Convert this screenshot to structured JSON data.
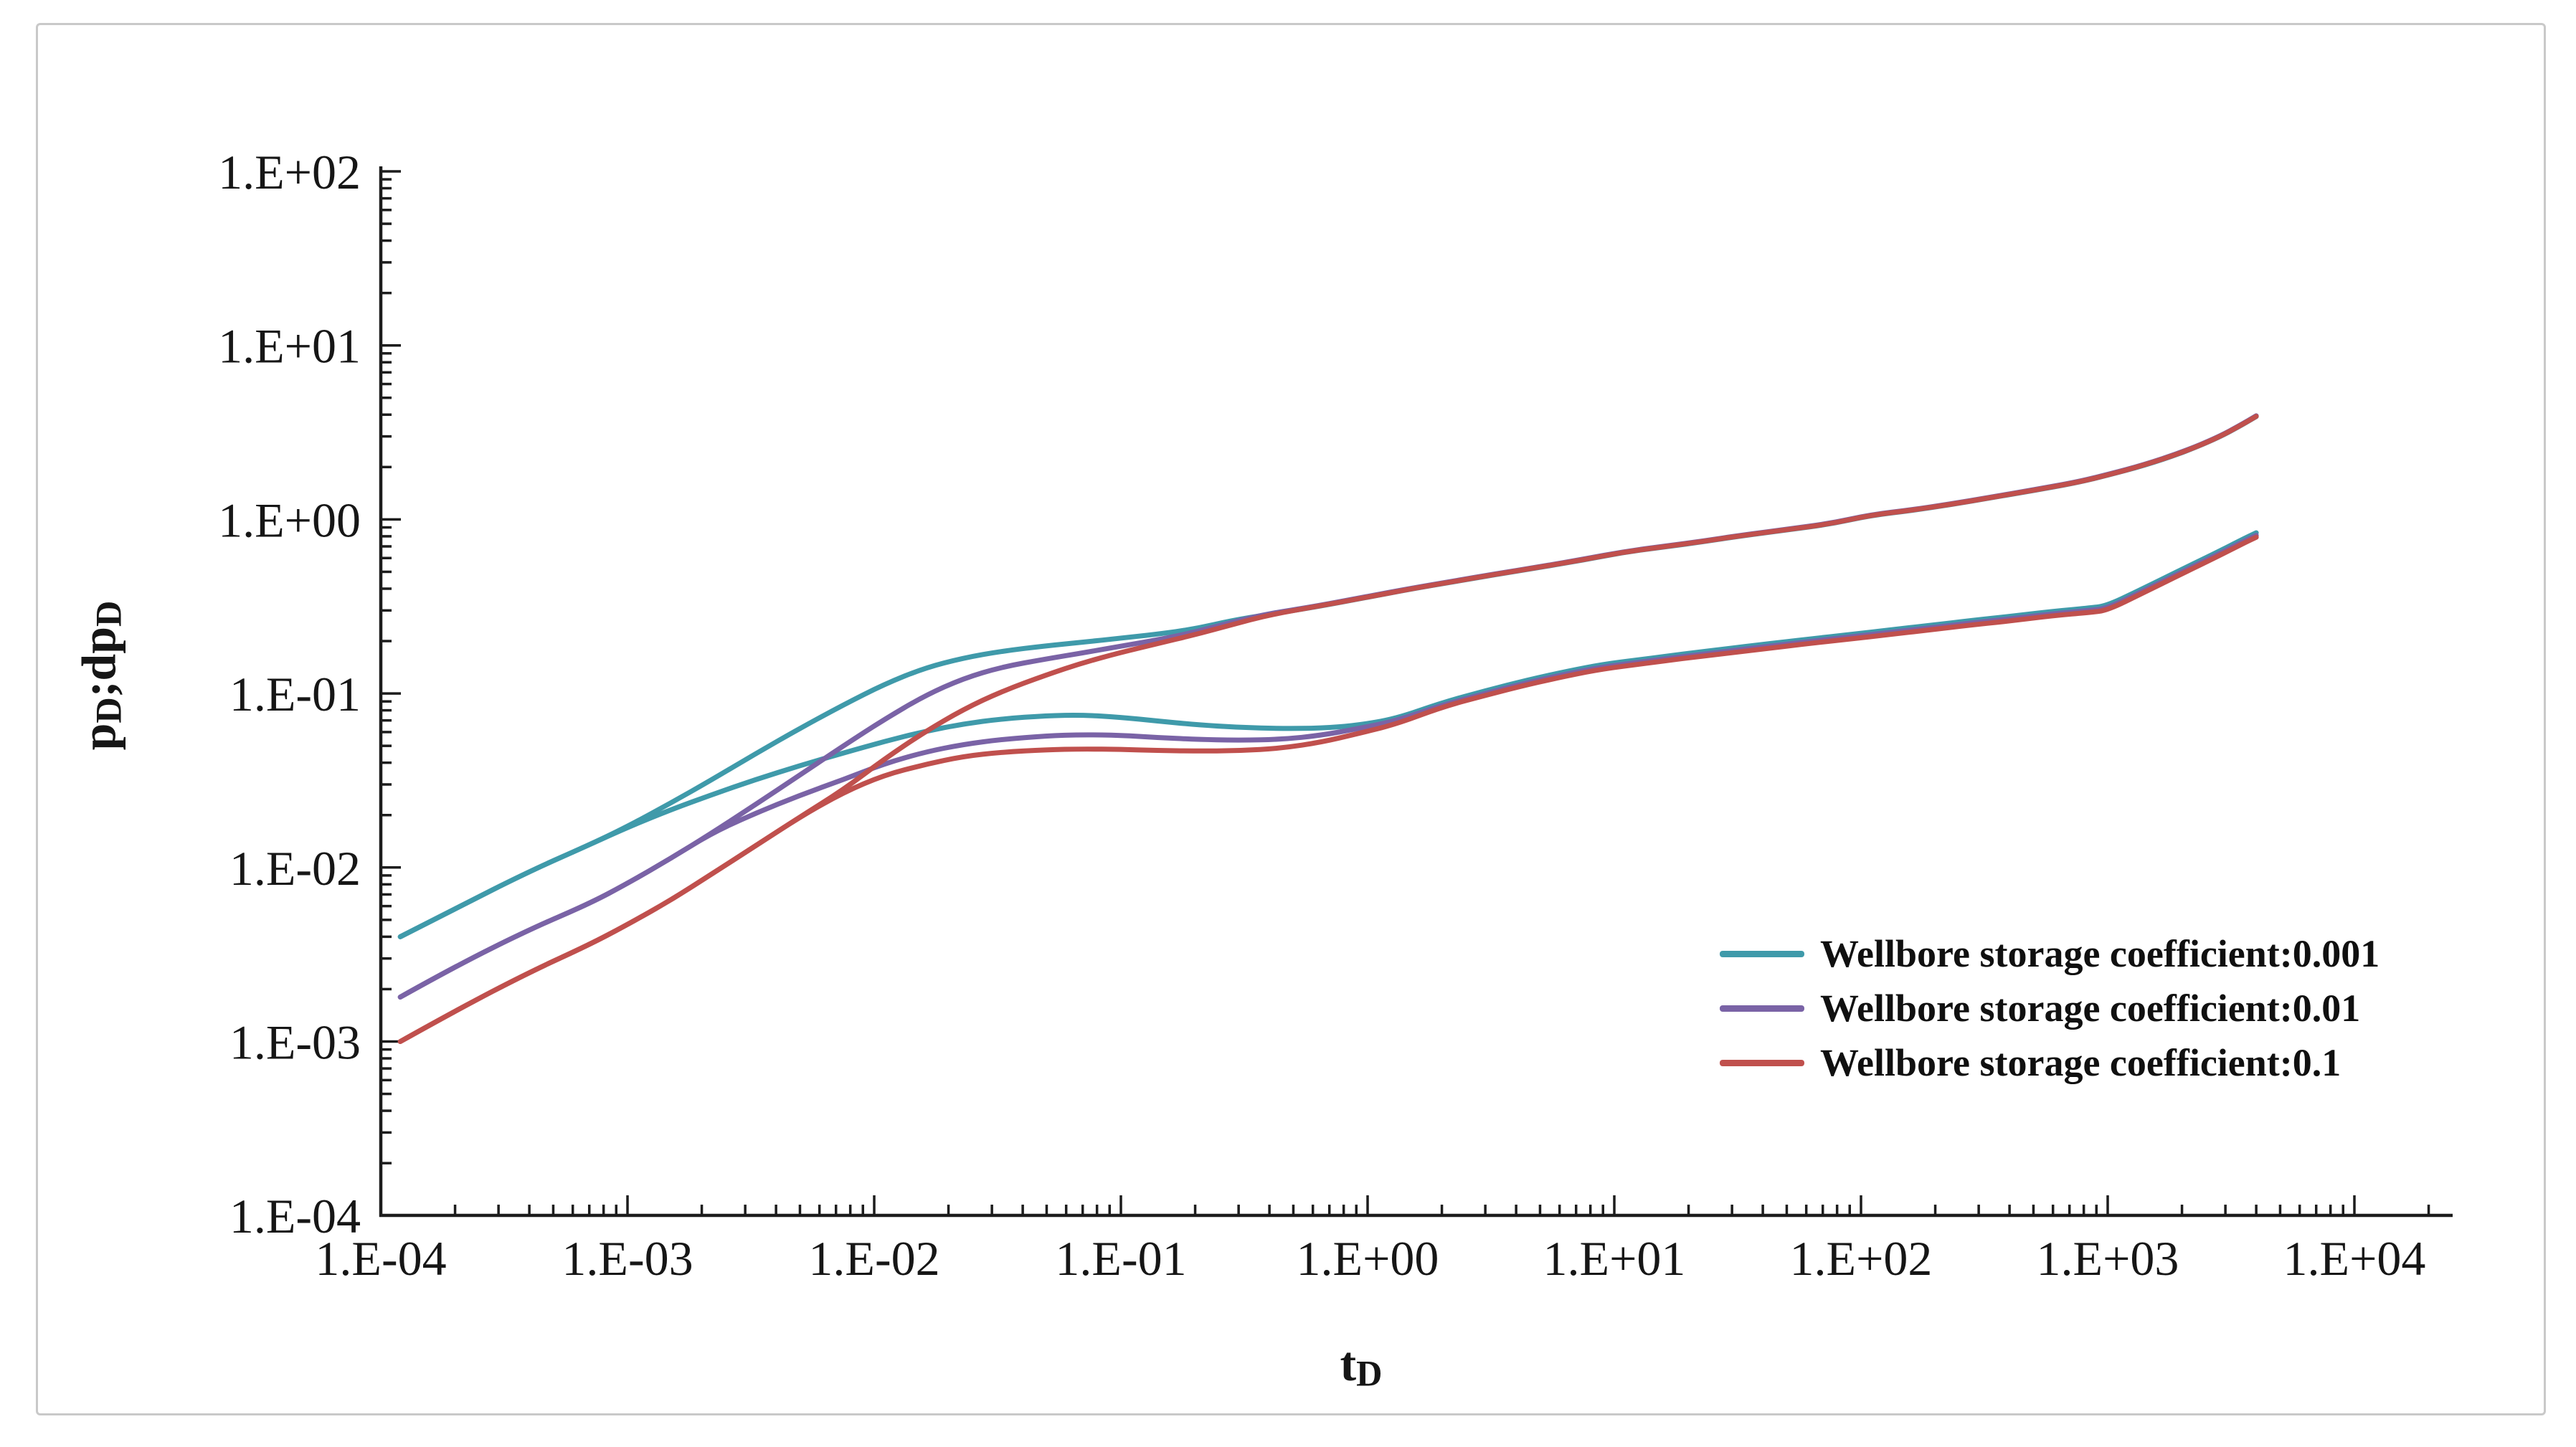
{
  "figure": {
    "background": "#ffffff",
    "border_color": "#c9c9c9",
    "axis_color": "#1c1c1c",
    "text_color": "#161616"
  },
  "chart_data": {
    "type": "line",
    "title": "",
    "x_axis": {
      "scale": "log",
      "label": "tD",
      "label_main": "t",
      "label_sub": "D",
      "min": 0.0001,
      "max": 10000,
      "tick_labels": [
        "1.E-04",
        "1.E-03",
        "1.E-02",
        "1.E-01",
        "1.E+00",
        "1.E+01",
        "1.E+02",
        "1.E+03",
        "1.E+04"
      ]
    },
    "y_axis": {
      "scale": "log",
      "label": "pD;dpD",
      "label_parts": [
        {
          "text": "p",
          "sub": false
        },
        {
          "text": "D",
          "sub": true
        },
        {
          "text": ";dp",
          "sub": false
        },
        {
          "text": "D",
          "sub": true
        }
      ],
      "min": 0.0001,
      "max": 100,
      "tick_labels": [
        "1.E+02",
        "1.E+01",
        "1.E+00",
        "1.E-01",
        "1.E-02",
        "1.E-03",
        "1.E-04"
      ]
    },
    "legend": {
      "position": "inside-right",
      "entries": [
        {
          "label": "Wellbore storage coefficient:0.001",
          "color": "#3f9aaa"
        },
        {
          "label": "Wellbore storage coefficient:0.01",
          "color": "#7a63a6"
        },
        {
          "label": "Wellbore storage coefficient:0.1",
          "color": "#c0504d"
        }
      ]
    },
    "series": [
      {
        "name": "wellbore-storage-0.001-pressure",
        "coefficient": 0.001,
        "role": "pressure",
        "color": "#3f9aaa",
        "points": [
          [
            0.00012,
            0.004
          ],
          [
            0.0002,
            0.0058
          ],
          [
            0.0004,
            0.0095
          ],
          [
            0.0007,
            0.0135
          ],
          [
            0.001,
            0.0172
          ],
          [
            0.0015,
            0.0235
          ],
          [
            0.0022,
            0.032
          ],
          [
            0.0033,
            0.045
          ],
          [
            0.005,
            0.063
          ],
          [
            0.0075,
            0.086
          ],
          [
            0.011,
            0.113
          ],
          [
            0.016,
            0.14
          ],
          [
            0.023,
            0.16
          ],
          [
            0.033,
            0.175
          ],
          [
            0.05,
            0.188
          ],
          [
            0.07,
            0.197
          ],
          [
            0.1,
            0.208
          ],
          [
            0.14,
            0.219
          ],
          [
            0.2,
            0.235
          ],
          [
            0.28,
            0.262
          ],
          [
            0.4,
            0.285
          ],
          [
            0.6,
            0.312
          ],
          [
            1,
            0.357
          ],
          [
            1.5,
            0.398
          ],
          [
            2.2,
            0.437
          ],
          [
            3.3,
            0.482
          ],
          [
            5,
            0.53
          ],
          [
            7.5,
            0.585
          ],
          [
            11,
            0.648
          ],
          [
            16,
            0.695
          ],
          [
            23,
            0.745
          ],
          [
            33,
            0.805
          ],
          [
            50,
            0.87
          ],
          [
            75,
            0.94
          ],
          [
            110,
            1.055
          ],
          [
            160,
            1.125
          ],
          [
            230,
            1.215
          ],
          [
            330,
            1.325
          ],
          [
            500,
            1.465
          ],
          [
            750,
            1.625
          ],
          [
            1000,
            1.795
          ],
          [
            1400,
            2.04
          ],
          [
            2000,
            2.41
          ],
          [
            2800,
            2.94
          ],
          [
            3500,
            3.49
          ],
          [
            4000,
            3.9
          ]
        ]
      },
      {
        "name": "wellbore-storage-0.001-derivative",
        "coefficient": 0.001,
        "role": "derivative",
        "color": "#3f9aaa",
        "points": [
          [
            0.00012,
            0.004
          ],
          [
            0.0002,
            0.0058
          ],
          [
            0.0004,
            0.0095
          ],
          [
            0.0007,
            0.0135
          ],
          [
            0.001,
            0.017
          ],
          [
            0.0015,
            0.0215
          ],
          [
            0.0022,
            0.0262
          ],
          [
            0.0033,
            0.032
          ],
          [
            0.005,
            0.0385
          ],
          [
            0.0075,
            0.0455
          ],
          [
            0.011,
            0.053
          ],
          [
            0.016,
            0.0605
          ],
          [
            0.023,
            0.0668
          ],
          [
            0.033,
            0.0715
          ],
          [
            0.05,
            0.0745
          ],
          [
            0.07,
            0.0752
          ],
          [
            0.1,
            0.073
          ],
          [
            0.14,
            0.0695
          ],
          [
            0.2,
            0.0662
          ],
          [
            0.3,
            0.0638
          ],
          [
            0.45,
            0.0628
          ],
          [
            0.65,
            0.0632
          ],
          [
            0.9,
            0.0655
          ],
          [
            1.3,
            0.0715
          ],
          [
            2,
            0.0885
          ],
          [
            3,
            0.1035
          ],
          [
            4.5,
            0.12
          ],
          [
            6.5,
            0.1345
          ],
          [
            9,
            0.147
          ],
          [
            13,
            0.157
          ],
          [
            19,
            0.1685
          ],
          [
            28,
            0.18
          ],
          [
            40,
            0.1915
          ],
          [
            60,
            0.2045
          ],
          [
            90,
            0.218
          ],
          [
            130,
            0.2315
          ],
          [
            190,
            0.246
          ],
          [
            280,
            0.2625
          ],
          [
            400,
            0.277
          ],
          [
            600,
            0.2965
          ],
          [
            850,
            0.31
          ],
          [
            1000,
            0.32
          ],
          [
            1400,
            0.403
          ],
          [
            2000,
            0.517
          ],
          [
            2800,
            0.651
          ],
          [
            3500,
            0.765
          ],
          [
            4000,
            0.838
          ]
        ]
      },
      {
        "name": "wellbore-storage-0.01-pressure",
        "coefficient": 0.01,
        "role": "pressure",
        "color": "#7a63a6",
        "points": [
          [
            0.00012,
            0.0018
          ],
          [
            0.0002,
            0.0027
          ],
          [
            0.0004,
            0.0044
          ],
          [
            0.0007,
            0.0062
          ],
          [
            0.001,
            0.0081
          ],
          [
            0.0015,
            0.0113
          ],
          [
            0.0022,
            0.0158
          ],
          [
            0.0033,
            0.023
          ],
          [
            0.005,
            0.034
          ],
          [
            0.0075,
            0.05
          ],
          [
            0.011,
            0.071
          ],
          [
            0.016,
            0.097
          ],
          [
            0.023,
            0.122
          ],
          [
            0.033,
            0.142
          ],
          [
            0.05,
            0.158
          ],
          [
            0.07,
            0.171
          ],
          [
            0.1,
            0.187
          ],
          [
            0.14,
            0.203
          ],
          [
            0.2,
            0.225
          ],
          [
            0.28,
            0.256
          ],
          [
            0.4,
            0.288
          ],
          [
            0.6,
            0.315
          ],
          [
            1,
            0.361
          ],
          [
            1.5,
            0.402
          ],
          [
            2.2,
            0.441
          ],
          [
            3.3,
            0.487
          ],
          [
            5,
            0.535
          ],
          [
            7.5,
            0.591
          ],
          [
            11,
            0.654
          ],
          [
            16,
            0.702
          ],
          [
            23,
            0.752
          ],
          [
            33,
            0.813
          ],
          [
            50,
            0.878
          ],
          [
            75,
            0.949
          ],
          [
            110,
            1.065
          ],
          [
            160,
            1.136
          ],
          [
            230,
            1.227
          ],
          [
            330,
            1.338
          ],
          [
            500,
            1.48
          ],
          [
            750,
            1.641
          ],
          [
            1000,
            1.813
          ],
          [
            1400,
            2.06
          ],
          [
            2000,
            2.434
          ],
          [
            2800,
            2.969
          ],
          [
            3500,
            3.525
          ],
          [
            4000,
            3.939
          ]
        ]
      },
      {
        "name": "wellbore-storage-0.01-derivative",
        "coefficient": 0.01,
        "role": "derivative",
        "color": "#7a63a6",
        "points": [
          [
            0.00012,
            0.0018
          ],
          [
            0.0002,
            0.0027
          ],
          [
            0.0004,
            0.0044
          ],
          [
            0.0007,
            0.0062
          ],
          [
            0.001,
            0.0081
          ],
          [
            0.0015,
            0.0113
          ],
          [
            0.0022,
            0.0158
          ],
          [
            0.0033,
            0.0205
          ],
          [
            0.005,
            0.026
          ],
          [
            0.0075,
            0.032
          ],
          [
            0.011,
            0.0395
          ],
          [
            0.016,
            0.046
          ],
          [
            0.023,
            0.051
          ],
          [
            0.033,
            0.0545
          ],
          [
            0.05,
            0.057
          ],
          [
            0.07,
            0.058
          ],
          [
            0.1,
            0.0575
          ],
          [
            0.14,
            0.0558
          ],
          [
            0.2,
            0.0545
          ],
          [
            0.3,
            0.0538
          ],
          [
            0.45,
            0.0545
          ],
          [
            0.65,
            0.0575
          ],
          [
            0.9,
            0.0625
          ],
          [
            1.3,
            0.0695
          ],
          [
            2,
            0.0855
          ],
          [
            3,
            0.1
          ],
          [
            4.5,
            0.116
          ],
          [
            6.5,
            0.13
          ],
          [
            9,
            0.142
          ],
          [
            13,
            0.152
          ],
          [
            19,
            0.163
          ],
          [
            28,
            0.174
          ],
          [
            40,
            0.185
          ],
          [
            60,
            0.198
          ],
          [
            90,
            0.211
          ],
          [
            130,
            0.224
          ],
          [
            190,
            0.238
          ],
          [
            280,
            0.254
          ],
          [
            400,
            0.268
          ],
          [
            600,
            0.287
          ],
          [
            850,
            0.3
          ],
          [
            1000,
            0.309
          ],
          [
            1400,
            0.39
          ],
          [
            2000,
            0.5
          ],
          [
            2800,
            0.63
          ],
          [
            3500,
            0.74
          ],
          [
            4000,
            0.81
          ]
        ]
      },
      {
        "name": "wellbore-storage-0.1-pressure",
        "coefficient": 0.1,
        "role": "pressure",
        "color": "#c0504d",
        "points": [
          [
            0.00012,
            0.001
          ],
          [
            0.0002,
            0.0015
          ],
          [
            0.0004,
            0.0025
          ],
          [
            0.0007,
            0.0036
          ],
          [
            0.001,
            0.0047
          ],
          [
            0.0015,
            0.0065
          ],
          [
            0.0022,
            0.0092
          ],
          [
            0.0033,
            0.0133
          ],
          [
            0.005,
            0.0195
          ],
          [
            0.0075,
            0.028
          ],
          [
            0.011,
            0.042
          ],
          [
            0.016,
            0.06
          ],
          [
            0.023,
            0.081
          ],
          [
            0.033,
            0.103
          ],
          [
            0.05,
            0.128
          ],
          [
            0.07,
            0.15
          ],
          [
            0.1,
            0.172
          ],
          [
            0.14,
            0.193
          ],
          [
            0.2,
            0.218
          ],
          [
            0.28,
            0.248
          ],
          [
            0.4,
            0.283
          ],
          [
            0.6,
            0.313
          ],
          [
            1,
            0.358
          ],
          [
            1.5,
            0.399
          ],
          [
            2.2,
            0.438
          ],
          [
            3.3,
            0.484
          ],
          [
            5,
            0.532
          ],
          [
            7.5,
            0.587
          ],
          [
            11,
            0.65
          ],
          [
            16,
            0.698
          ],
          [
            23,
            0.748
          ],
          [
            33,
            0.808
          ],
          [
            50,
            0.873
          ],
          [
            75,
            0.943
          ],
          [
            110,
            1.059
          ],
          [
            160,
            1.129
          ],
          [
            230,
            1.219
          ],
          [
            330,
            1.329
          ],
          [
            500,
            1.47
          ],
          [
            750,
            1.63
          ],
          [
            1000,
            1.8
          ],
          [
            1400,
            2.047
          ],
          [
            2000,
            2.418
          ],
          [
            2800,
            2.95
          ],
          [
            3500,
            3.502
          ],
          [
            4000,
            3.912
          ]
        ]
      },
      {
        "name": "wellbore-storage-0.1-derivative",
        "coefficient": 0.1,
        "role": "derivative",
        "color": "#c0504d",
        "points": [
          [
            0.00012,
            0.001
          ],
          [
            0.0002,
            0.0015
          ],
          [
            0.0004,
            0.0025
          ],
          [
            0.0007,
            0.0036
          ],
          [
            0.001,
            0.0047
          ],
          [
            0.0015,
            0.0065
          ],
          [
            0.0022,
            0.0092
          ],
          [
            0.0033,
            0.0133
          ],
          [
            0.005,
            0.0195
          ],
          [
            0.0075,
            0.027
          ],
          [
            0.011,
            0.034
          ],
          [
            0.016,
            0.039
          ],
          [
            0.023,
            0.0435
          ],
          [
            0.033,
            0.046
          ],
          [
            0.05,
            0.0475
          ],
          [
            0.07,
            0.048
          ],
          [
            0.1,
            0.0477
          ],
          [
            0.14,
            0.047
          ],
          [
            0.2,
            0.0467
          ],
          [
            0.3,
            0.0468
          ],
          [
            0.45,
            0.0485
          ],
          [
            0.65,
            0.0525
          ],
          [
            0.9,
            0.0585
          ],
          [
            1.3,
            0.0665
          ],
          [
            2,
            0.0835
          ],
          [
            3,
            0.0975
          ],
          [
            4.5,
            0.113
          ],
          [
            6.5,
            0.1265
          ],
          [
            9,
            0.1385
          ],
          [
            13,
            0.148
          ],
          [
            19,
            0.159
          ],
          [
            28,
            0.1695
          ],
          [
            40,
            0.18
          ],
          [
            60,
            0.193
          ],
          [
            90,
            0.2055
          ],
          [
            130,
            0.218
          ],
          [
            190,
            0.232
          ],
          [
            280,
            0.2475
          ],
          [
            400,
            0.261
          ],
          [
            600,
            0.28
          ],
          [
            850,
            0.2925
          ],
          [
            1000,
            0.301
          ],
          [
            1400,
            0.38
          ],
          [
            2000,
            0.4875
          ],
          [
            2800,
            0.614
          ],
          [
            3500,
            0.7215
          ],
          [
            4000,
            0.79
          ]
        ]
      }
    ]
  }
}
